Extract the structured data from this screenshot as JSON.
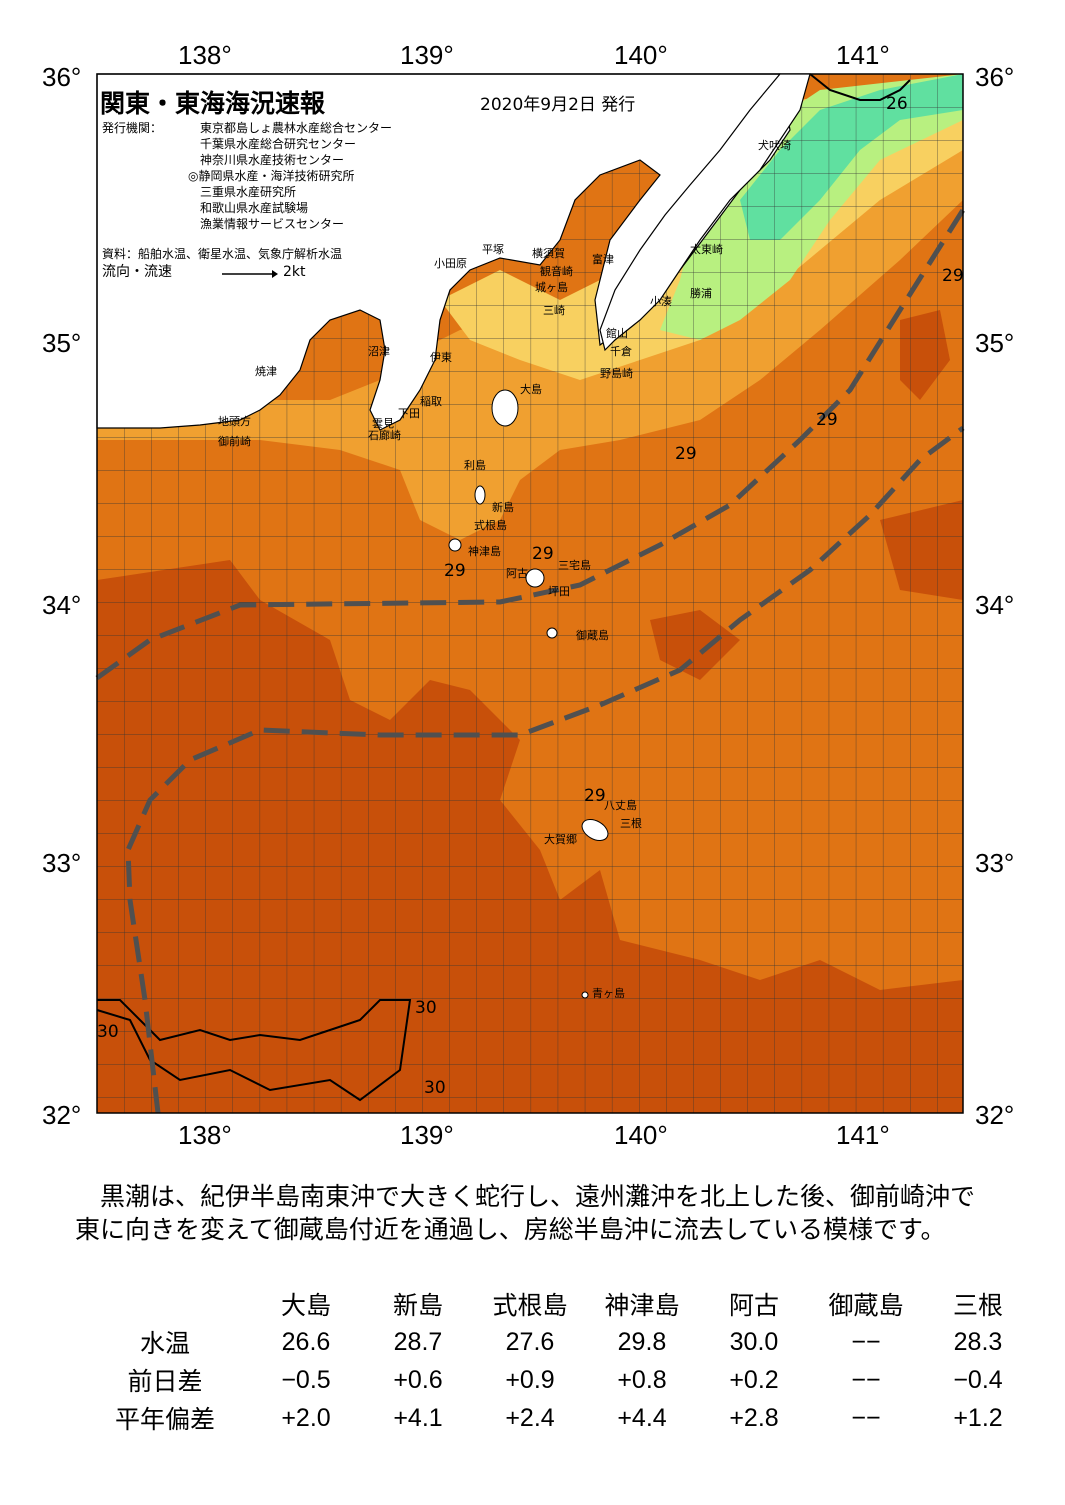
{
  "header": {
    "title": "関東・東海海況速報",
    "issue_date": "2020年9月2日 発行",
    "issuer_label": "発行機関：",
    "issuers": [
      "東京都島しょ農林水産総合センター",
      "千葉県水産総合研究センター",
      "神奈川県水産技術センター",
      "◎静岡県水産・海洋技術研究所",
      "三重県水産研究所",
      "和歌山県水産試験場",
      "漁業情報サービスセンター"
    ],
    "sources": "資料：船舶水温、衛星水温、気象庁解析水温",
    "current_legend": "流向・流速",
    "current_unit": "2kt"
  },
  "axes": {
    "lon_labels": [
      "138°",
      "139°",
      "140°",
      "141°"
    ],
    "lat_labels": [
      "36°",
      "35°",
      "34°",
      "33°",
      "32°"
    ],
    "lon_range": [
      137.5,
      141.5
    ],
    "lat_range": [
      32,
      36
    ]
  },
  "map": {
    "colors": {
      "deep_warm": "#c8500a",
      "warm": "#e07414",
      "mid": "#f0a030",
      "cool": "#f8d060",
      "cold": "#b8f080",
      "coldest": "#60e0a0",
      "land": "#ffffff",
      "kuroshio_line": "#505050"
    },
    "isotherm_labels": [
      "26",
      "29",
      "29",
      "29",
      "29",
      "29",
      "29",
      "30",
      "30",
      "30"
    ],
    "place_names": [
      "犬吠埼",
      "太東崎",
      "勝浦",
      "小湊",
      "館山",
      "千倉",
      "野島崎",
      "富津",
      "観音崎",
      "横須賀",
      "城ヶ島",
      "三崎",
      "平塚",
      "小田原",
      "伊東",
      "沼津",
      "大島",
      "稲取",
      "下田",
      "石廊崎",
      "雲見",
      "焼津",
      "地頭方",
      "御前崎",
      "利島",
      "新島",
      "式根島",
      "神津島",
      "三宅島",
      "阿古",
      "坪田",
      "御蔵島",
      "八丈島",
      "三根",
      "大賀郷",
      "青ヶ島"
    ]
  },
  "commentary": [
    "黒潮は、紀伊半島南東沖で大きく蛇行し、遠州灘沖を北上した後、御前崎沖で",
    "東に向きを変えて御蔵島付近を通過し、房総半島沖に流去している模様です。"
  ],
  "table": {
    "columns": [
      "大島",
      "新島",
      "式根島",
      "神津島",
      "阿古",
      "御蔵島",
      "三根"
    ],
    "rows": [
      {
        "label": "水温",
        "values": [
          "26.6",
          "28.7",
          "27.6",
          "29.8",
          "30.0",
          "−−",
          "28.3"
        ]
      },
      {
        "label": "前日差",
        "values": [
          "−0.5",
          "+0.6",
          "+0.9",
          "+0.8",
          "+0.2",
          "−−",
          "−0.4"
        ]
      },
      {
        "label": "平年偏差",
        "values": [
          "+2.0",
          "+4.1",
          "+2.4",
          "+4.4",
          "+2.8",
          "−−",
          "+1.2"
        ]
      }
    ]
  }
}
